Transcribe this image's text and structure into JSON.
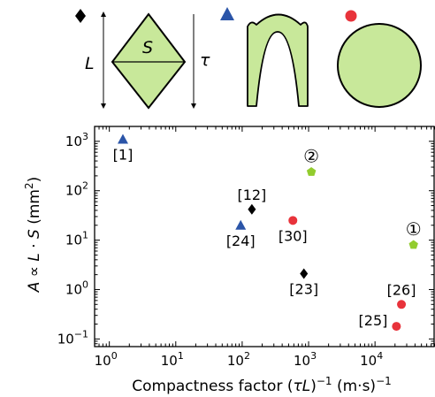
{
  "chart_data": {
    "type": "scatter",
    "xlabel_text": "Compactness factor (",
    "xlabel_tau": "τ",
    "xlabel_L": "L",
    "xlabel_rest1": ")",
    "xlabel_sup1": "−1",
    "xlabel_units": " (m·s)",
    "xlabel_sup2": "−1",
    "ylabel_A": "A",
    "ylabel_prop": " ∝ ",
    "ylabel_L": "L",
    "ylabel_dot": " · ",
    "ylabel_S": "S",
    "ylabel_units": " (mm",
    "ylabel_sup": "2",
    "ylabel_close": ")",
    "x_scale": "log",
    "y_scale": "log",
    "xlim": [
      0.6,
      80000
    ],
    "ylim": [
      0.07,
      2000
    ],
    "x_ticks": [
      {
        "value": 1,
        "base": "10",
        "exp": "0"
      },
      {
        "value": 10,
        "base": "10",
        "exp": "1"
      },
      {
        "value": 100,
        "base": "10",
        "exp": "2"
      },
      {
        "value": 1000,
        "base": "10",
        "exp": "3"
      },
      {
        "value": 10000,
        "base": "10",
        "exp": "4"
      }
    ],
    "y_ticks": [
      {
        "value": 0.1,
        "base": "10",
        "exp": "−1"
      },
      {
        "value": 1,
        "base": "10",
        "exp": "0"
      },
      {
        "value": 10,
        "base": "10",
        "exp": "1"
      },
      {
        "value": 100,
        "base": "10",
        "exp": "2"
      },
      {
        "value": 1000,
        "base": "10",
        "exp": "3"
      }
    ],
    "colors": {
      "triangle": "#2b55a8",
      "diamond": "#000000",
      "circle": "#e8333b",
      "pentagon": "#92cc2e",
      "shape_fill": "#c8e89a"
    },
    "points": [
      {
        "marker": "triangle",
        "x": 1.6,
        "y": 1100,
        "label": "[1]",
        "label_pos": "below"
      },
      {
        "marker": "triangle",
        "x": 95,
        "y": 20,
        "label": "[24]",
        "label_pos": "below"
      },
      {
        "marker": "diamond",
        "x": 140,
        "y": 42,
        "label": "[12]",
        "label_pos": "above"
      },
      {
        "marker": "diamond",
        "x": 850,
        "y": 2.1,
        "label": "[23]",
        "label_pos": "below"
      },
      {
        "marker": "circle",
        "x": 580,
        "y": 25,
        "label": "[30]",
        "label_pos": "below"
      },
      {
        "marker": "circle",
        "x": 25000,
        "y": 0.5,
        "label": "[26]",
        "label_pos": "above"
      },
      {
        "marker": "circle",
        "x": 21000,
        "y": 0.18,
        "label": "[25]",
        "label_pos": "left"
      },
      {
        "marker": "pentagon",
        "x": 1100,
        "y": 240,
        "label": "②",
        "label_pos": "above"
      },
      {
        "marker": "pentagon",
        "x": 38000,
        "y": 8,
        "label": "①",
        "label_pos": "above"
      }
    ]
  },
  "legend_shapes": {
    "diamond": {
      "height_label": "L",
      "area_label": "S",
      "time_label": "τ"
    }
  }
}
